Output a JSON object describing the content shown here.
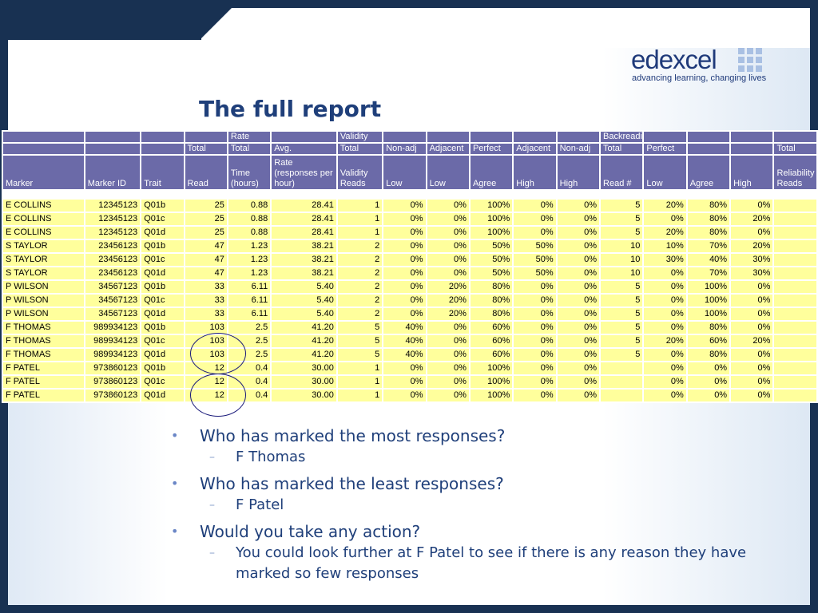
{
  "slide": {
    "title": "The full report"
  },
  "logo": {
    "word": "edexcel",
    "tagline": "advancing learning, changing lives"
  },
  "table": {
    "group_header": [
      "",
      "",
      "",
      "",
      "Rate",
      "",
      "Validity",
      "",
      "",
      "",
      "",
      "",
      "Backreading",
      "",
      "",
      "",
      ""
    ],
    "sub_header": [
      "",
      "",
      "",
      "Total",
      "Total",
      "Avg.",
      "Total",
      "Non-adj",
      "Adjacent",
      "Perfect",
      "Adjacent",
      "Non-adj",
      "Total",
      "Perfect",
      "",
      "",
      "Total"
    ],
    "column_header": [
      "Marker",
      "Marker ID",
      "Trait",
      "Read",
      "Time (hours)",
      "Rate (responses per hour)",
      "Validity Reads",
      "Low",
      "Low",
      "Agree",
      "High",
      "High",
      "Read #",
      "Low",
      "Agree",
      "High",
      "Reliability Reads"
    ],
    "rows": [
      [
        "E  COLLINS",
        "12345123",
        "Q01b",
        "25",
        "0.88",
        "28.41",
        "1",
        "0%",
        "0%",
        "100%",
        "0%",
        "0%",
        "5",
        "20%",
        "80%",
        "0%",
        ""
      ],
      [
        "E  COLLINS",
        "12345123",
        "Q01c",
        "25",
        "0.88",
        "28.41",
        "1",
        "0%",
        "0%",
        "100%",
        "0%",
        "0%",
        "5",
        "0%",
        "80%",
        "20%",
        ""
      ],
      [
        "E  COLLINS",
        "12345123",
        "Q01d",
        "25",
        "0.88",
        "28.41",
        "1",
        "0%",
        "0%",
        "100%",
        "0%",
        "0%",
        "5",
        "20%",
        "80%",
        "0%",
        ""
      ],
      [
        "S  TAYLOR",
        "23456123",
        "Q01b",
        "47",
        "1.23",
        "38.21",
        "2",
        "0%",
        "0%",
        "50%",
        "50%",
        "0%",
        "10",
        "10%",
        "70%",
        "20%",
        ""
      ],
      [
        "S  TAYLOR",
        "23456123",
        "Q01c",
        "47",
        "1.23",
        "38.21",
        "2",
        "0%",
        "0%",
        "50%",
        "50%",
        "0%",
        "10",
        "30%",
        "40%",
        "30%",
        ""
      ],
      [
        "S  TAYLOR",
        "23456123",
        "Q01d",
        "47",
        "1.23",
        "38.21",
        "2",
        "0%",
        "0%",
        "50%",
        "50%",
        "0%",
        "10",
        "0%",
        "70%",
        "30%",
        ""
      ],
      [
        "P  WILSON",
        "34567123",
        "Q01b",
        "33",
        "6.11",
        "5.40",
        "2",
        "0%",
        "20%",
        "80%",
        "0%",
        "0%",
        "5",
        "0%",
        "100%",
        "0%",
        ""
      ],
      [
        "P  WILSON",
        "34567123",
        "Q01c",
        "33",
        "6.11",
        "5.40",
        "2",
        "0%",
        "20%",
        "80%",
        "0%",
        "0%",
        "5",
        "0%",
        "100%",
        "0%",
        ""
      ],
      [
        "P  WILSON",
        "34567123",
        "Q01d",
        "33",
        "6.11",
        "5.40",
        "2",
        "0%",
        "20%",
        "80%",
        "0%",
        "0%",
        "5",
        "0%",
        "100%",
        "0%",
        ""
      ],
      [
        "F  THOMAS",
        "989934123",
        "Q01b",
        "103",
        "2.5",
        "41.20",
        "5",
        "40%",
        "0%",
        "60%",
        "0%",
        "0%",
        "5",
        "0%",
        "80%",
        "0%",
        ""
      ],
      [
        "F  THOMAS",
        "989934123",
        "Q01c",
        "103",
        "2.5",
        "41.20",
        "5",
        "40%",
        "0%",
        "60%",
        "0%",
        "0%",
        "5",
        "20%",
        "60%",
        "20%",
        ""
      ],
      [
        "F  THOMAS",
        "989934123",
        "Q01d",
        "103",
        "2.5",
        "41.20",
        "5",
        "40%",
        "0%",
        "60%",
        "0%",
        "0%",
        "5",
        "0%",
        "80%",
        "0%",
        ""
      ],
      [
        "F  PATEL",
        "973860123",
        "Q01b",
        "12",
        "0.4",
        "30.00",
        "1",
        "0%",
        "0%",
        "100%",
        "0%",
        "0%",
        "",
        "0%",
        "0%",
        "0%",
        ""
      ],
      [
        "F  PATEL",
        "973860123",
        "Q01c",
        "12",
        "0.4",
        "30.00",
        "1",
        "0%",
        "0%",
        "100%",
        "0%",
        "0%",
        "",
        "0%",
        "0%",
        "0%",
        ""
      ],
      [
        "F  PATEL",
        "973860123",
        "Q01d",
        "12",
        "0.4",
        "30.00",
        "1",
        "0%",
        "0%",
        "100%",
        "0%",
        "0%",
        "",
        "0%",
        "0%",
        "0%",
        ""
      ]
    ]
  },
  "bullets": [
    {
      "text": "Who has marked the most responses?",
      "sub": "F Thomas"
    },
    {
      "text": "Who has marked the least responses?",
      "sub": "F Patel"
    },
    {
      "text": "Would you take any action?",
      "sub": "You could look further at F Patel to see if there is any reason they have marked so few responses"
    }
  ],
  "colors": {
    "background": "#183152",
    "title": "#1f3f7a",
    "header": "#6b6aa8",
    "row_fill": "#ffff9c",
    "annotation": "#1a1a7a"
  }
}
